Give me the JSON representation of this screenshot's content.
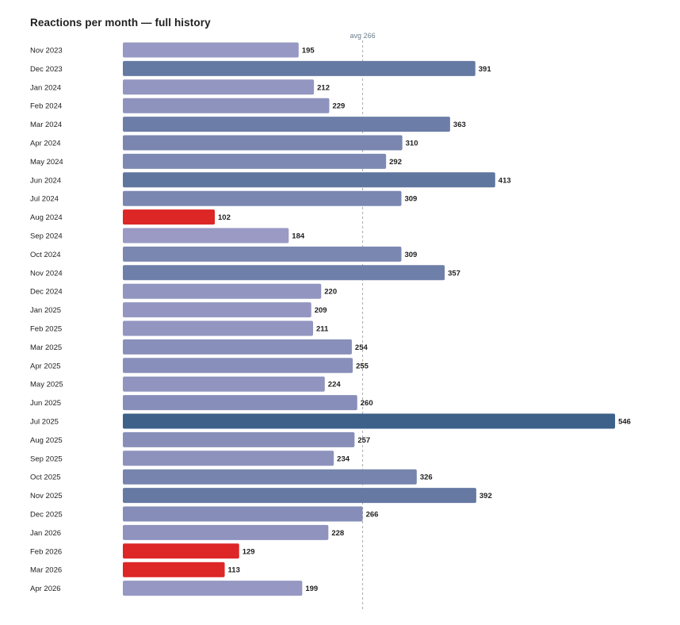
{
  "chart_data": {
    "type": "bar",
    "orientation": "horizontal",
    "title": "Reactions per month — full history",
    "xlabel": "",
    "ylabel": "",
    "reference_line": {
      "label": "avg 266",
      "value": 266
    },
    "highlight_color": "#dd2626",
    "categories": [
      "Nov 2023",
      "Dec 2023",
      "Jan 2024",
      "Feb 2024",
      "Mar 2024",
      "Apr 2024",
      "May 2024",
      "Jun 2024",
      "Jul 2024",
      "Aug 2024",
      "Sep 2024",
      "Oct 2024",
      "Nov 2024",
      "Dec 2024",
      "Jan 2025",
      "Feb 2025",
      "Mar 2025",
      "Apr 2025",
      "May 2025",
      "Jun 2025",
      "Jul 2025",
      "Aug 2025",
      "Sep 2025",
      "Oct 2025",
      "Nov 2025",
      "Dec 2025",
      "Jan 2026",
      "Feb 2026",
      "Mar 2026",
      "Apr 2026"
    ],
    "values": [
      195,
      391,
      212,
      229,
      363,
      310,
      292,
      413,
      309,
      102,
      184,
      309,
      357,
      220,
      209,
      211,
      254,
      255,
      224,
      260,
      546,
      257,
      234,
      326,
      392,
      266,
      228,
      129,
      113,
      199
    ],
    "highlighted": [
      false,
      false,
      false,
      false,
      false,
      false,
      false,
      false,
      false,
      true,
      false,
      false,
      false,
      false,
      false,
      false,
      false,
      false,
      false,
      false,
      false,
      false,
      false,
      false,
      false,
      false,
      false,
      true,
      true,
      false
    ]
  }
}
